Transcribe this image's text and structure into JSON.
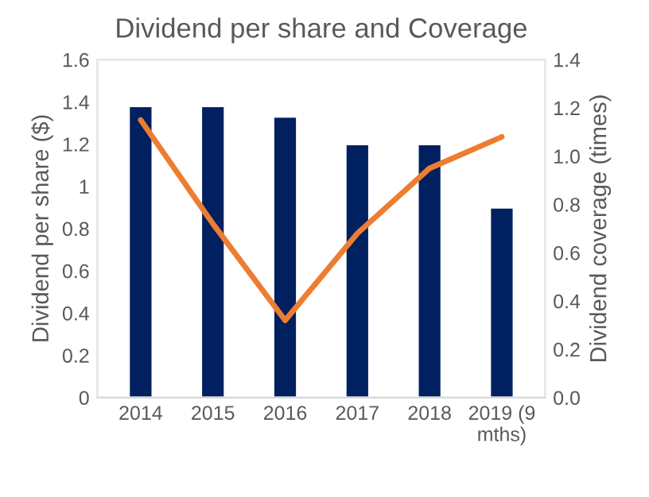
{
  "chart_data": {
    "type": "bar",
    "title": "Dividend per share and Coverage",
    "ylabel": "Dividend per share ($)",
    "y2label": "Dividend coverage (times)",
    "categories": [
      "2014",
      "2015",
      "2016",
      "2017",
      "2018",
      "2019 (9\nmths)"
    ],
    "series": [
      {
        "color": "#002060",
        "values": [
          1.38,
          1.38,
          1.33,
          1.2,
          1.2,
          0.9
        ]
      },
      {
        "type": "line",
        "axis": "y2",
        "color": "#ed7d31",
        "line_style": "solid",
        "values": [
          1.15,
          0.72,
          0.32,
          0.68,
          0.95,
          1.08
        ]
      }
    ],
    "ylim": [
      0,
      1.6
    ],
    "yticks": [
      0,
      0.2,
      0.4,
      0.6,
      0.8,
      1,
      1.2,
      1.4,
      1.6
    ],
    "y2lim": [
      0,
      1.4
    ],
    "y2ticks": [
      {
        "value": 0,
        "label": "0.0"
      },
      {
        "value": 0.2,
        "label": "0.2"
      },
      {
        "value": 0.4,
        "label": "0.4"
      },
      {
        "value": 0.6,
        "label": "0.6"
      },
      {
        "value": 0.8,
        "label": "0.8"
      },
      {
        "value": 1,
        "label": "1.0"
      },
      {
        "value": 1.2,
        "label": "1.2"
      },
      {
        "value": 1.4,
        "label": "1.4"
      }
    ],
    "grid": false,
    "legend": false
  }
}
